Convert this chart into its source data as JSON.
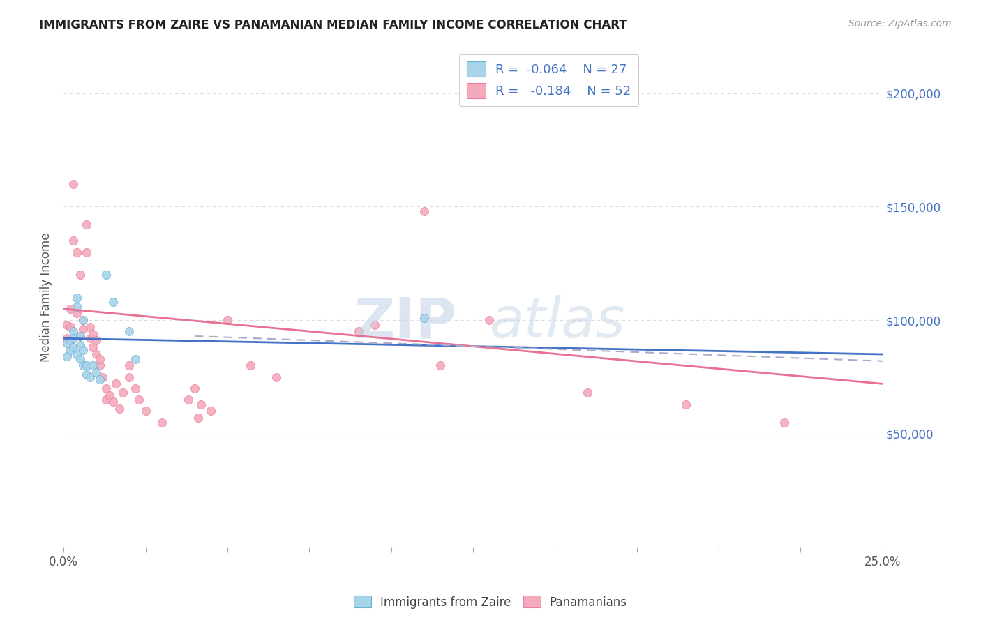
{
  "title": "IMMIGRANTS FROM ZAIRE VS PANAMANIAN MEDIAN FAMILY INCOME CORRELATION CHART",
  "source": "Source: ZipAtlas.com",
  "ylabel": "Median Family Income",
  "ytick_labels": [
    "$50,000",
    "$100,000",
    "$150,000",
    "$200,000"
  ],
  "ytick_values": [
    50000,
    100000,
    150000,
    200000
  ],
  "ylim": [
    0,
    220000
  ],
  "xlim": [
    0,
    0.25
  ],
  "legend_blue_r": "R = -0.064",
  "legend_blue_n": "N = 27",
  "legend_pink_r": "R =  -0.184",
  "legend_pink_n": "N = 52",
  "legend_label_blue": "Immigrants from Zaire",
  "legend_label_pink": "Panamanians",
  "watermark": "ZIPatlas",
  "blue_scatter_x": [
    0.001,
    0.001,
    0.002,
    0.002,
    0.003,
    0.003,
    0.003,
    0.004,
    0.004,
    0.004,
    0.005,
    0.005,
    0.005,
    0.006,
    0.006,
    0.006,
    0.007,
    0.007,
    0.008,
    0.009,
    0.01,
    0.011,
    0.013,
    0.015,
    0.02,
    0.022,
    0.11
  ],
  "blue_scatter_y": [
    90000,
    84000,
    91000,
    87000,
    95000,
    92000,
    88000,
    110000,
    106000,
    85000,
    93000,
    89000,
    83000,
    100000,
    87000,
    80000,
    80000,
    76000,
    75000,
    80000,
    77000,
    74000,
    120000,
    108000,
    95000,
    83000,
    101000
  ],
  "pink_scatter_x": [
    0.001,
    0.001,
    0.002,
    0.002,
    0.003,
    0.003,
    0.004,
    0.004,
    0.005,
    0.005,
    0.006,
    0.006,
    0.007,
    0.007,
    0.008,
    0.008,
    0.009,
    0.009,
    0.01,
    0.01,
    0.011,
    0.011,
    0.012,
    0.013,
    0.013,
    0.014,
    0.015,
    0.016,
    0.017,
    0.018,
    0.02,
    0.02,
    0.022,
    0.023,
    0.025,
    0.03,
    0.038,
    0.04,
    0.041,
    0.042,
    0.045,
    0.05,
    0.057,
    0.065,
    0.09,
    0.095,
    0.11,
    0.115,
    0.13,
    0.16,
    0.19,
    0.22
  ],
  "pink_scatter_y": [
    98000,
    92000,
    105000,
    97000,
    160000,
    135000,
    103000,
    130000,
    93000,
    120000,
    96000,
    100000,
    142000,
    130000,
    97000,
    92000,
    88000,
    94000,
    85000,
    91000,
    80000,
    83000,
    75000,
    65000,
    70000,
    67000,
    64000,
    72000,
    61000,
    68000,
    75000,
    80000,
    70000,
    65000,
    60000,
    55000,
    65000,
    70000,
    57000,
    63000,
    60000,
    100000,
    80000,
    75000,
    95000,
    98000,
    148000,
    80000,
    100000,
    68000,
    63000,
    55000
  ],
  "blue_line_x": [
    0.0,
    0.25
  ],
  "blue_line_y": [
    92000,
    85000
  ],
  "pink_line_x": [
    0.0,
    0.25
  ],
  "pink_line_y": [
    105000,
    72000
  ],
  "dashed_line_x": [
    0.04,
    0.25
  ],
  "dashed_line_y": [
    93000,
    82000
  ],
  "scatter_size": 75,
  "blue_color": "#A8D4EA",
  "pink_color": "#F4AABB",
  "blue_edge_color": "#6aafd4",
  "pink_edge_color": "#e87fa0",
  "blue_line_color": "#4472C4",
  "pink_line_color": "#E87090",
  "dashed_line_color": "#AAAACC",
  "grid_color": "#DDDDDD",
  "background_color": "#FFFFFF",
  "title_color": "#222222",
  "right_label_color": "#4472C4",
  "source_color": "#999999",
  "xtick_positions": [
    0.0,
    0.025,
    0.05,
    0.075,
    0.1,
    0.125,
    0.15,
    0.175,
    0.2,
    0.225,
    0.25
  ]
}
